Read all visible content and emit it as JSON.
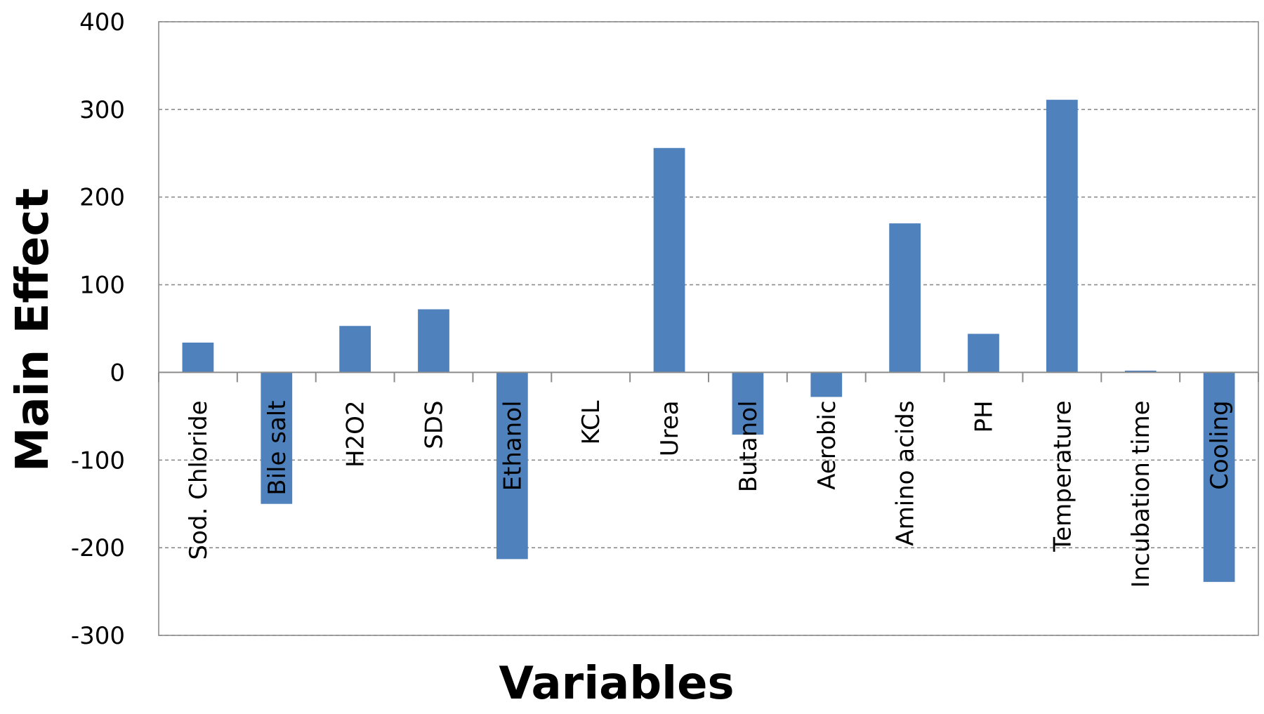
{
  "chart_data": {
    "type": "bar",
    "title": "",
    "xlabel": "Variables",
    "ylabel": "Main Effect",
    "ylim": [
      -300,
      400
    ],
    "yticks": [
      400,
      300,
      200,
      100,
      0,
      -100,
      -200,
      -300
    ],
    "grid": true,
    "legend": "none",
    "bar_color": "#4f81bd",
    "categories": [
      "Sod. Chloride",
      "Bile salt",
      "H2O2",
      "SDS",
      "Ethanol",
      "KCL",
      "Urea",
      "Butanol",
      "Aerobic",
      "Amino acids",
      "PH",
      "Temperature",
      "Incubation time",
      "Cooling"
    ],
    "values": [
      34,
      -150,
      53,
      72,
      -213,
      0,
      256,
      -71,
      -28,
      170,
      44,
      311,
      2,
      -239
    ]
  }
}
